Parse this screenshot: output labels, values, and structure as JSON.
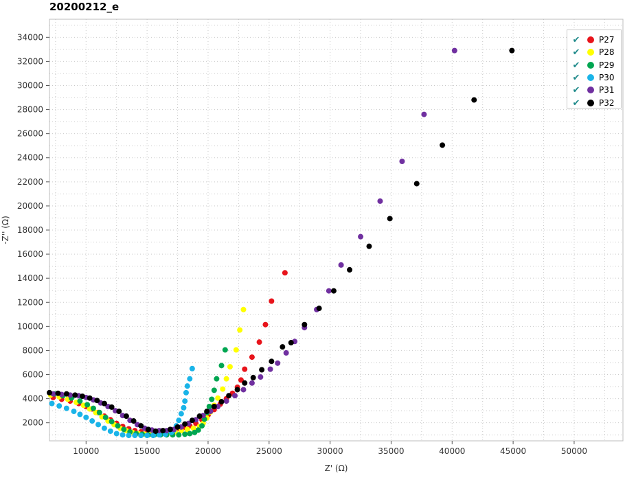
{
  "title": "20200212_e",
  "chart_data": {
    "type": "scatter",
    "title": "20200212_e",
    "xlabel": "Z' (Ω)",
    "ylabel": "-Z'' (Ω)",
    "xlim": [
      7000,
      54000
    ],
    "ylim": [
      500,
      35500
    ],
    "xticks": [
      10000,
      15000,
      20000,
      25000,
      30000,
      35000,
      40000,
      45000,
      50000
    ],
    "yticks": [
      2000,
      4000,
      6000,
      8000,
      10000,
      12000,
      14000,
      16000,
      18000,
      20000,
      22000,
      24000,
      26000,
      28000,
      30000,
      32000,
      34000
    ],
    "grid": true,
    "legend_position": "top-right",
    "series": [
      {
        "name": "P27",
        "color": "#e8141b",
        "points": [
          [
            7300,
            4100
          ],
          [
            8000,
            3950
          ],
          [
            8700,
            3800
          ],
          [
            9400,
            3600
          ],
          [
            10000,
            3350
          ],
          [
            10500,
            3150
          ],
          [
            11000,
            2850
          ],
          [
            11500,
            2550
          ],
          [
            12000,
            2250
          ],
          [
            12500,
            1950
          ],
          [
            13000,
            1700
          ],
          [
            13500,
            1500
          ],
          [
            14000,
            1350
          ],
          [
            14500,
            1250
          ],
          [
            15000,
            1200
          ],
          [
            15500,
            1200
          ],
          [
            16000,
            1250
          ],
          [
            16500,
            1300
          ],
          [
            17000,
            1400
          ],
          [
            17500,
            1500
          ],
          [
            18000,
            1600
          ],
          [
            18500,
            1750
          ],
          [
            19000,
            1950
          ],
          [
            19500,
            2250
          ],
          [
            20000,
            2650
          ],
          [
            20500,
            3100
          ],
          [
            21000,
            3550
          ],
          [
            21500,
            4000
          ],
          [
            22000,
            4450
          ],
          [
            22400,
            4950
          ],
          [
            22700,
            5550
          ],
          [
            23000,
            6450
          ],
          [
            23600,
            7450
          ],
          [
            24200,
            8700
          ],
          [
            24700,
            10150
          ],
          [
            25200,
            12100
          ],
          [
            26300,
            14450
          ]
        ]
      },
      {
        "name": "P28",
        "color": "#ffff00",
        "points": [
          [
            7100,
            4300
          ],
          [
            7800,
            4150
          ],
          [
            8500,
            3950
          ],
          [
            9200,
            3700
          ],
          [
            9800,
            3450
          ],
          [
            10300,
            3150
          ],
          [
            10800,
            2850
          ],
          [
            11300,
            2500
          ],
          [
            11800,
            2150
          ],
          [
            12300,
            1850
          ],
          [
            12800,
            1550
          ],
          [
            13300,
            1350
          ],
          [
            13800,
            1200
          ],
          [
            14300,
            1100
          ],
          [
            14800,
            1050
          ],
          [
            15300,
            1050
          ],
          [
            15800,
            1100
          ],
          [
            16300,
            1150
          ],
          [
            16800,
            1200
          ],
          [
            17300,
            1250
          ],
          [
            17800,
            1350
          ],
          [
            18300,
            1450
          ],
          [
            18800,
            1550
          ],
          [
            19300,
            1700
          ],
          [
            19600,
            1950
          ],
          [
            19900,
            2400
          ],
          [
            20200,
            2900
          ],
          [
            20500,
            3450
          ],
          [
            20800,
            4050
          ],
          [
            21200,
            4800
          ],
          [
            21500,
            5650
          ],
          [
            21800,
            6650
          ],
          [
            22300,
            8050
          ],
          [
            22600,
            9700
          ],
          [
            22900,
            11400
          ]
        ]
      },
      {
        "name": "P29",
        "color": "#00a651",
        "points": [
          [
            7400,
            4400
          ],
          [
            8100,
            4250
          ],
          [
            8800,
            4050
          ],
          [
            9500,
            3800
          ],
          [
            10100,
            3500
          ],
          [
            10600,
            3200
          ],
          [
            11100,
            2850
          ],
          [
            11600,
            2450
          ],
          [
            12100,
            2100
          ],
          [
            12600,
            1750
          ],
          [
            13100,
            1450
          ],
          [
            13600,
            1250
          ],
          [
            14100,
            1100
          ],
          [
            14600,
            1050
          ],
          [
            15100,
            1000
          ],
          [
            15600,
            1000
          ],
          [
            16100,
            1000
          ],
          [
            16600,
            1000
          ],
          [
            17100,
            1000
          ],
          [
            17600,
            1000
          ],
          [
            18100,
            1050
          ],
          [
            18500,
            1100
          ],
          [
            18900,
            1200
          ],
          [
            19200,
            1400
          ],
          [
            19500,
            1750
          ],
          [
            19700,
            2300
          ],
          [
            19900,
            2850
          ],
          [
            20100,
            3350
          ],
          [
            20300,
            3950
          ],
          [
            20500,
            4700
          ],
          [
            20700,
            5650
          ],
          [
            21100,
            6750
          ],
          [
            21400,
            8050
          ]
        ]
      },
      {
        "name": "P30",
        "color": "#1ab4e8",
        "points": [
          [
            7200,
            3600
          ],
          [
            7800,
            3400
          ],
          [
            8400,
            3200
          ],
          [
            9000,
            2950
          ],
          [
            9500,
            2700
          ],
          [
            10000,
            2450
          ],
          [
            10500,
            2150
          ],
          [
            11000,
            1850
          ],
          [
            11500,
            1550
          ],
          [
            12000,
            1300
          ],
          [
            12500,
            1100
          ],
          [
            13000,
            1000
          ],
          [
            13500,
            950
          ],
          [
            14000,
            950
          ],
          [
            14500,
            950
          ],
          [
            15000,
            950
          ],
          [
            15500,
            950
          ],
          [
            16000,
            1000
          ],
          [
            16500,
            1050
          ],
          [
            17000,
            1200
          ],
          [
            17200,
            1400
          ],
          [
            17400,
            1750
          ],
          [
            17600,
            2200
          ],
          [
            17800,
            2750
          ],
          [
            18000,
            3250
          ],
          [
            18100,
            3800
          ],
          [
            18200,
            4500
          ],
          [
            18300,
            5050
          ],
          [
            18500,
            5650
          ],
          [
            18700,
            6500
          ]
        ]
      },
      {
        "name": "P31",
        "color": "#7030a0",
        "points": [
          [
            7300,
            4400
          ],
          [
            8000,
            4350
          ],
          [
            8700,
            4300
          ],
          [
            9400,
            4250
          ],
          [
            10000,
            4100
          ],
          [
            10600,
            3900
          ],
          [
            11200,
            3650
          ],
          [
            11800,
            3350
          ],
          [
            12400,
            3000
          ],
          [
            13000,
            2600
          ],
          [
            13600,
            2200
          ],
          [
            14200,
            1850
          ],
          [
            14800,
            1550
          ],
          [
            15400,
            1400
          ],
          [
            16000,
            1350
          ],
          [
            16600,
            1350
          ],
          [
            17200,
            1450
          ],
          [
            17800,
            1650
          ],
          [
            18400,
            1950
          ],
          [
            19000,
            2250
          ],
          [
            19600,
            2600
          ],
          [
            20200,
            2950
          ],
          [
            20800,
            3350
          ],
          [
            21500,
            3800
          ],
          [
            22200,
            4250
          ],
          [
            22900,
            4750
          ],
          [
            23600,
            5300
          ],
          [
            24300,
            5800
          ],
          [
            25100,
            6450
          ],
          [
            25700,
            6950
          ],
          [
            26400,
            7800
          ],
          [
            27100,
            8750
          ],
          [
            27900,
            9900
          ],
          [
            28900,
            11400
          ],
          [
            29900,
            12950
          ],
          [
            30900,
            15100
          ],
          [
            32500,
            17450
          ],
          [
            34100,
            20400
          ],
          [
            35900,
            23700
          ],
          [
            37700,
            27600
          ],
          [
            40200,
            32900
          ]
        ]
      },
      {
        "name": "P32",
        "color": "#000000",
        "points": [
          [
            7000,
            4500
          ],
          [
            7700,
            4450
          ],
          [
            8400,
            4400
          ],
          [
            9100,
            4300
          ],
          [
            9700,
            4200
          ],
          [
            10300,
            4050
          ],
          [
            10900,
            3850
          ],
          [
            11500,
            3600
          ],
          [
            12100,
            3300
          ],
          [
            12700,
            2950
          ],
          [
            13300,
            2550
          ],
          [
            13900,
            2150
          ],
          [
            14500,
            1750
          ],
          [
            15100,
            1450
          ],
          [
            15700,
            1300
          ],
          [
            16300,
            1350
          ],
          [
            16900,
            1450
          ],
          [
            17500,
            1650
          ],
          [
            18100,
            1900
          ],
          [
            18700,
            2200
          ],
          [
            19300,
            2550
          ],
          [
            19900,
            2950
          ],
          [
            20500,
            3350
          ],
          [
            21100,
            3750
          ],
          [
            21700,
            4250
          ],
          [
            22400,
            4750
          ],
          [
            23000,
            5300
          ],
          [
            23700,
            5750
          ],
          [
            24400,
            6400
          ],
          [
            25200,
            7100
          ],
          [
            26100,
            8300
          ],
          [
            26800,
            8650
          ],
          [
            27900,
            10150
          ],
          [
            29100,
            11500
          ],
          [
            30300,
            12950
          ],
          [
            31600,
            14700
          ],
          [
            33200,
            16650
          ],
          [
            34900,
            18950
          ],
          [
            37100,
            21850
          ],
          [
            39200,
            25050
          ],
          [
            41800,
            28800
          ],
          [
            44900,
            32900
          ]
        ]
      }
    ]
  }
}
